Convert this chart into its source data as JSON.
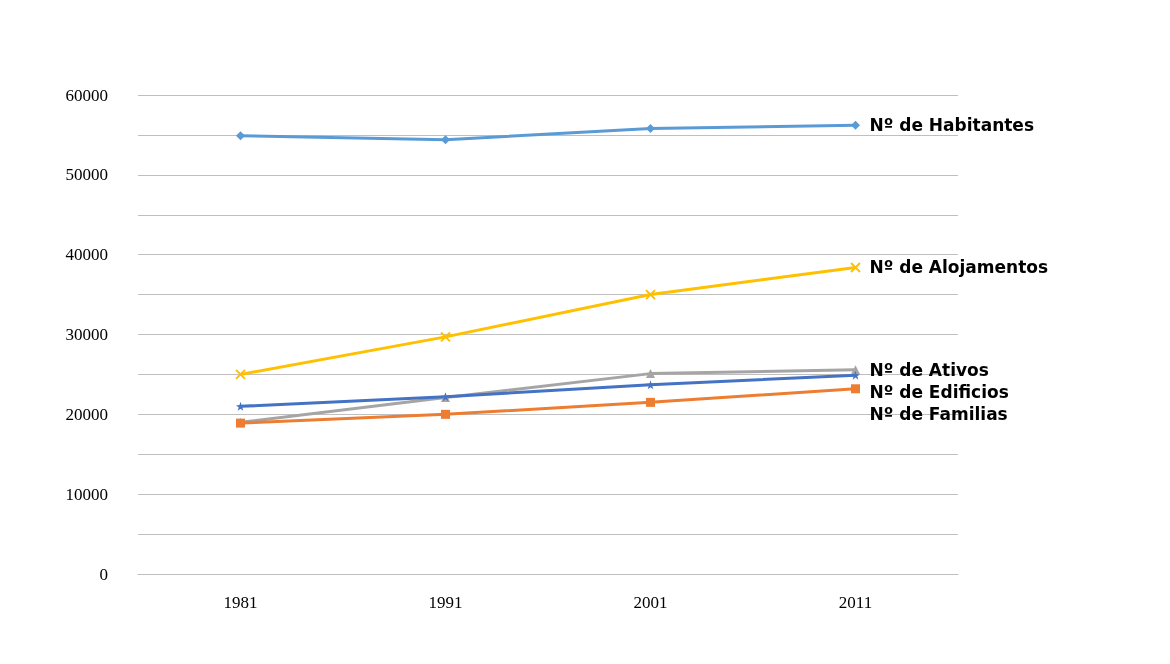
{
  "chart_data": {
    "type": "line",
    "categories": [
      "1981",
      "1991",
      "2001",
      "2011"
    ],
    "series": [
      {
        "name": "Nº de Habitantes",
        "color": "#5b9bd5",
        "marker": "diamond",
        "values": [
          54900,
          54400,
          55800,
          56200
        ]
      },
      {
        "name": "Nº de Alojamentos",
        "color": "#ffc000",
        "marker": "cross",
        "values": [
          25000,
          29700,
          35000,
          38400
        ]
      },
      {
        "name": "Nº de Ativos",
        "color": "#a5a5a5",
        "marker": "triangle",
        "values": [
          19000,
          22100,
          25100,
          25600
        ]
      },
      {
        "name": "Nº de Edificios",
        "color": "#4472c4",
        "marker": "star",
        "values": [
          21000,
          22200,
          23700,
          24900
        ]
      },
      {
        "name": "Nº de Familias",
        "color": "#ed7d31",
        "marker": "square",
        "values": [
          18900,
          20000,
          21500,
          23200
        ]
      }
    ],
    "ylim": [
      0,
      60000
    ],
    "yticks": [
      0,
      {
        "value": 5000,
        "label": null
      },
      10000,
      {
        "value": 15000,
        "label": null
      },
      20000,
      {
        "value": 25000,
        "label": null
      },
      30000,
      {
        "value": 35000,
        "label": null
      },
      40000,
      {
        "value": 45000,
        "label": null
      },
      50000,
      {
        "value": 55000,
        "label": null
      },
      60000
    ],
    "grid": "y",
    "legend": false
  }
}
